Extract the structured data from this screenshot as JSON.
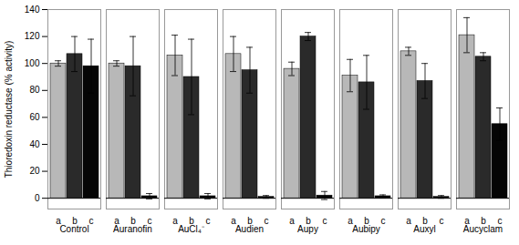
{
  "chart_data": {
    "type": "bar",
    "categories": [
      "Control",
      "Auranofin",
      "AuCl₄⁻",
      "Audien",
      "Aupy",
      "Aubipy",
      "Auxyl",
      "Aucyclam"
    ],
    "series": [
      {
        "name": "a",
        "color": "#b8b8b8",
        "values": [
          100,
          100,
          106,
          107,
          96,
          91,
          109,
          121
        ],
        "errors": [
          2,
          2,
          15,
          13,
          5,
          12,
          3,
          13
        ]
      },
      {
        "name": "b",
        "color": "#2a2a2a",
        "values": [
          107,
          98,
          90,
          95,
          120,
          86,
          87,
          105
        ],
        "errors": [
          13,
          22,
          28,
          17,
          3,
          20,
          13,
          3
        ]
      },
      {
        "name": "c",
        "color": "#050505",
        "values": [
          98,
          1.5,
          1.5,
          1.0,
          2.0,
          1.5,
          1.0,
          55
        ],
        "errors": [
          20,
          2,
          2,
          1,
          3,
          1,
          1,
          12
        ]
      }
    ],
    "ylabel": "Thioredoxin reductase (% activity)",
    "ylim": [
      -8,
      140
    ],
    "yticks": [
      0,
      20,
      40,
      60,
      80,
      100,
      120,
      140
    ]
  }
}
